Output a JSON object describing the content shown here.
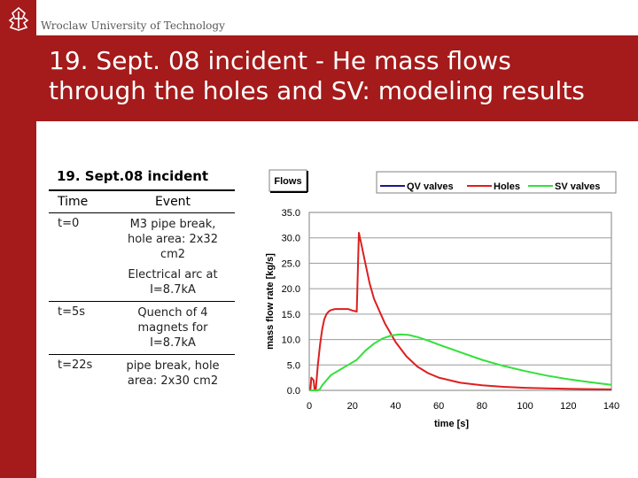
{
  "header": {
    "university": "Wroclaw University of Technology",
    "title_lines": [
      "19. Sept. 08 incident - He mass flows",
      "through the holes and SV: modeling results"
    ]
  },
  "event_table": {
    "caption": "19. Sept.08 incident",
    "columns": [
      "Time",
      "Event"
    ],
    "rows": [
      {
        "time": "t=0",
        "event_lines": [
          "M3 pipe break,",
          "hole area: 2x32",
          "cm2",
          "",
          "Electrical arc at",
          "I=8.7kA"
        ]
      },
      {
        "time": "t=5s",
        "event_lines": [
          "Quench of 4",
          "magnets for",
          "I=8.7kA"
        ]
      },
      {
        "time": "t=22s",
        "event_lines": [
          "pipe break, hole",
          "area: 2x30 cm2"
        ]
      }
    ]
  },
  "chart_data": {
    "type": "line",
    "title": "Flows",
    "xlabel": "time [s]",
    "ylabel": "mass flow rate [kg/s]",
    "xlim": [
      0,
      140
    ],
    "ylim": [
      0,
      35
    ],
    "x_ticks": [
      "0",
      "20",
      "40",
      "60",
      "80",
      "100",
      "120",
      "140"
    ],
    "y_ticks": [
      "0.0",
      "5.0",
      "10.0",
      "15.0",
      "20.0",
      "25.0",
      "30.0",
      "35.0"
    ],
    "grid": "horizontal",
    "legend": "top",
    "series": [
      {
        "name": "QV valves",
        "color": "#1a1a8c",
        "x": [],
        "y": []
      },
      {
        "name": "Holes",
        "color": "#dd1f1f",
        "x": [
          0,
          0.5,
          1,
          2,
          2.5,
          3,
          4,
          5,
          6,
          7,
          8,
          9,
          10,
          12,
          14,
          16,
          18,
          20,
          21,
          22,
          23,
          24,
          26,
          28,
          30,
          35,
          40,
          45,
          50,
          55,
          60,
          70,
          80,
          90,
          100,
          110,
          120,
          130,
          140
        ],
        "y": [
          0,
          0,
          2.5,
          2,
          0,
          0,
          5,
          9,
          12,
          14,
          15,
          15.5,
          15.8,
          16,
          16,
          16,
          16,
          15.7,
          15.6,
          15.5,
          31,
          29,
          25,
          21,
          18,
          13.2,
          9.5,
          6.7,
          4.7,
          3.4,
          2.5,
          1.5,
          1,
          0.7,
          0.5,
          0.4,
          0.3,
          0.25,
          0.2
        ]
      },
      {
        "name": "SV valves",
        "color": "#33e03a",
        "x": [
          0,
          4,
          5,
          6,
          8,
          10,
          14,
          18,
          22,
          26,
          30,
          34,
          38,
          42,
          46,
          50,
          55,
          60,
          70,
          80,
          90,
          100,
          110,
          120,
          130,
          140
        ],
        "y": [
          0,
          0,
          0.3,
          1,
          2,
          3,
          4,
          5,
          6,
          7.8,
          9.2,
          10.2,
          10.8,
          11,
          10.9,
          10.5,
          9.8,
          9,
          7.5,
          6,
          4.8,
          3.8,
          2.9,
          2.2,
          1.6,
          1.1
        ]
      }
    ]
  },
  "colors": {
    "brand_red": "#a51a1a"
  }
}
